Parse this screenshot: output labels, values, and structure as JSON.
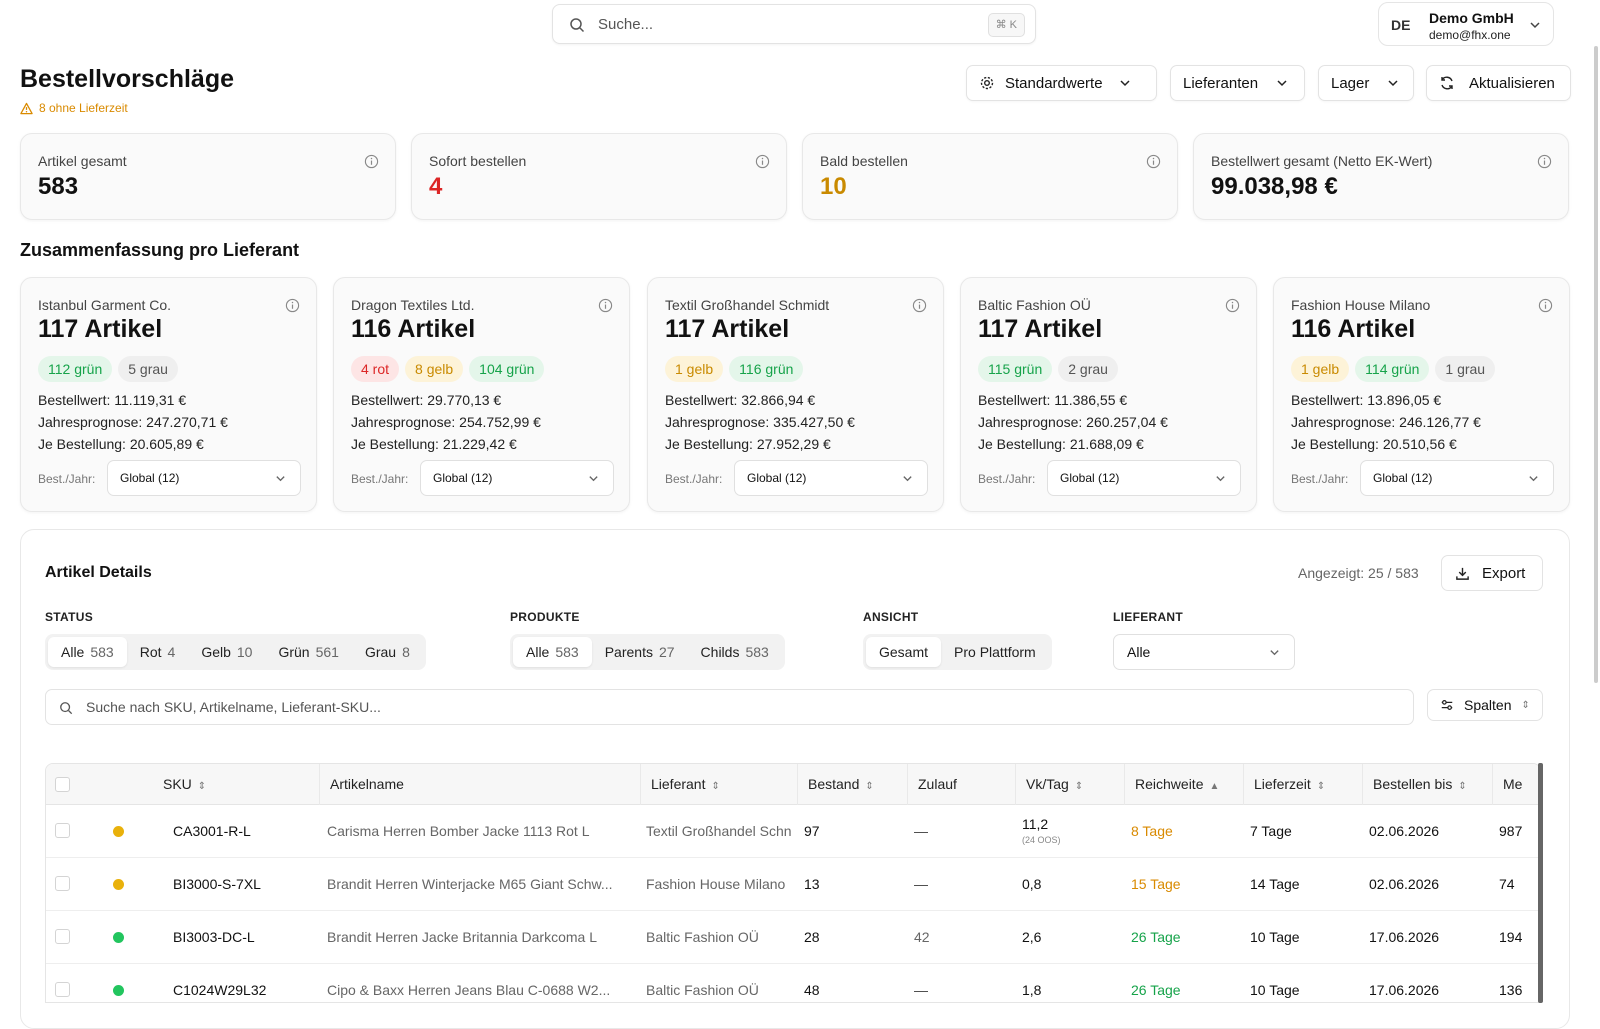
{
  "search": {
    "placeholder": "Suche...",
    "shortcut": "⌘ K"
  },
  "account": {
    "initials": "DE",
    "name": "Demo GmbH",
    "email": "demo@fhx.one"
  },
  "page": {
    "title": "Bestellvorschläge",
    "warning": "8 ohne Lieferzeit"
  },
  "toolbar": {
    "defaults": "Standardwerte",
    "suppliers": "Lieferanten",
    "warehouse": "Lager",
    "refresh": "Aktualisieren"
  },
  "kpis": [
    {
      "label": "Artikel gesamt",
      "value": "583",
      "color": "#111111"
    },
    {
      "label": "Sofort bestellen",
      "value": "4",
      "color": "#dc2626"
    },
    {
      "label": "Bald bestellen",
      "value": "10",
      "color": "#c98a00"
    },
    {
      "label": "Bestellwert gesamt (Netto EK-Wert)",
      "value": "99.038,98 €",
      "color": "#111111"
    }
  ],
  "summary_title": "Zusammenfassung pro Lieferant",
  "suppliers": [
    {
      "name": "Istanbul Garment Co.",
      "count": "117 Artikel",
      "pills": [
        {
          "text": "112 grün",
          "kind": "green"
        },
        {
          "text": "5 grau",
          "kind": "grey"
        }
      ],
      "order_value": "Bestellwert: 11.119,31 €",
      "forecast": "Jahresprognose: 247.270,71 €",
      "per_order": "Je Bestellung: 20.605,89 €",
      "bj_label": "Best./Jahr:",
      "bj_value": "Global (12)"
    },
    {
      "name": "Dragon Textiles Ltd.",
      "count": "116 Artikel",
      "pills": [
        {
          "text": "4 rot",
          "kind": "red"
        },
        {
          "text": "8 gelb",
          "kind": "yellow"
        },
        {
          "text": "104 grün",
          "kind": "green"
        }
      ],
      "order_value": "Bestellwert: 29.770,13 €",
      "forecast": "Jahresprognose: 254.752,99 €",
      "per_order": "Je Bestellung: 21.229,42 €",
      "bj_label": "Best./Jahr:",
      "bj_value": "Global (12)"
    },
    {
      "name": "Textil Großhandel Schmidt",
      "count": "117 Artikel",
      "pills": [
        {
          "text": "1 gelb",
          "kind": "yellow"
        },
        {
          "text": "116 grün",
          "kind": "green"
        }
      ],
      "order_value": "Bestellwert: 32.866,94 €",
      "forecast": "Jahresprognose: 335.427,50 €",
      "per_order": "Je Bestellung: 27.952,29 €",
      "bj_label": "Best./Jahr:",
      "bj_value": "Global (12)"
    },
    {
      "name": "Baltic Fashion OÜ",
      "count": "117 Artikel",
      "pills": [
        {
          "text": "115 grün",
          "kind": "green"
        },
        {
          "text": "2 grau",
          "kind": "grey"
        }
      ],
      "order_value": "Bestellwert: 11.386,55 €",
      "forecast": "Jahresprognose: 260.257,04 €",
      "per_order": "Je Bestellung: 21.688,09 €",
      "bj_label": "Best./Jahr:",
      "bj_value": "Global (12)"
    },
    {
      "name": "Fashion House Milano",
      "count": "116 Artikel",
      "pills": [
        {
          "text": "1 gelb",
          "kind": "yellow"
        },
        {
          "text": "114 grün",
          "kind": "green"
        },
        {
          "text": "1 grau",
          "kind": "grey"
        }
      ],
      "order_value": "Bestellwert: 13.896,05 €",
      "forecast": "Jahresprognose: 246.126,77 €",
      "per_order": "Je Bestellung: 20.510,56 €",
      "bj_label": "Best./Jahr:",
      "bj_value": "Global (12)"
    }
  ],
  "details": {
    "title": "Artikel Details",
    "shown": "Angezeigt: 25 / 583",
    "export": "Export",
    "status_label": "STATUS",
    "status_options": [
      {
        "label": "Alle",
        "count": "583"
      },
      {
        "label": "Rot",
        "count": "4"
      },
      {
        "label": "Gelb",
        "count": "10"
      },
      {
        "label": "Grün",
        "count": "561"
      },
      {
        "label": "Grau",
        "count": "8"
      }
    ],
    "products_label": "PRODUKTE",
    "products_options": [
      {
        "label": "Alle",
        "count": "583"
      },
      {
        "label": "Parents",
        "count": "27"
      },
      {
        "label": "Childs",
        "count": "583"
      }
    ],
    "view_label": "ANSICHT",
    "view_options": [
      {
        "label": "Gesamt"
      },
      {
        "label": "Pro Plattform"
      }
    ],
    "supplier_label": "LIEFERANT",
    "supplier_value": "Alle",
    "search_placeholder": "Suche nach SKU, Artikelname, Lieferant-SKU...",
    "columns_button": "Spalten"
  },
  "table": {
    "headers": [
      "SKU",
      "Artikelname",
      "Lieferant",
      "Bestand",
      "Zulauf",
      "Vk/Tag",
      "Reichweite",
      "Lieferzeit",
      "Bestellen bis",
      "Me"
    ],
    "rows": [
      {
        "status": "#e9b10b",
        "sku": "CA3001-R-L",
        "name": "Carisma Herren Bomber Jacke 1113 Rot L",
        "supplier": "Textil Großhandel Schn",
        "stock": "97",
        "inflow": "—",
        "sales": "11,2",
        "sales_note": "(24 OOS)",
        "reach": "8 Tage",
        "reach_color": "#d98a00",
        "lead": "7 Tage",
        "order_by": "02.06.2026",
        "me": "987"
      },
      {
        "status": "#e9b10b",
        "sku": "BI3000-S-7XL",
        "name": "Brandit Herren Winterjacke M65 Giant Schw...",
        "supplier": "Fashion House Milano",
        "stock": "13",
        "inflow": "—",
        "sales": "0,8",
        "sales_note": "",
        "reach": "15 Tage",
        "reach_color": "#d98a00",
        "lead": "14 Tage",
        "order_by": "02.06.2026",
        "me": "74"
      },
      {
        "status": "#22c55e",
        "sku": "BI3003-DC-L",
        "name": "Brandit Herren Jacke Britannia Darkcoma L",
        "supplier": "Baltic Fashion OÜ",
        "stock": "28",
        "inflow": "42",
        "sales": "2,6",
        "sales_note": "",
        "reach": "26 Tage",
        "reach_color": "#16a34a",
        "lead": "10 Tage",
        "order_by": "17.06.2026",
        "me": "194"
      },
      {
        "status": "#22c55e",
        "sku": "C1024W29L32",
        "name": "Cipo & Baxx Herren Jeans Blau C-0688 W2...",
        "supplier": "Baltic Fashion OÜ",
        "stock": "48",
        "inflow": "—",
        "sales": "1,8",
        "sales_note": "",
        "reach": "26 Tage",
        "reach_color": "#16a34a",
        "lead": "10 Tage",
        "order_by": "17.06.2026",
        "me": "136"
      }
    ]
  }
}
